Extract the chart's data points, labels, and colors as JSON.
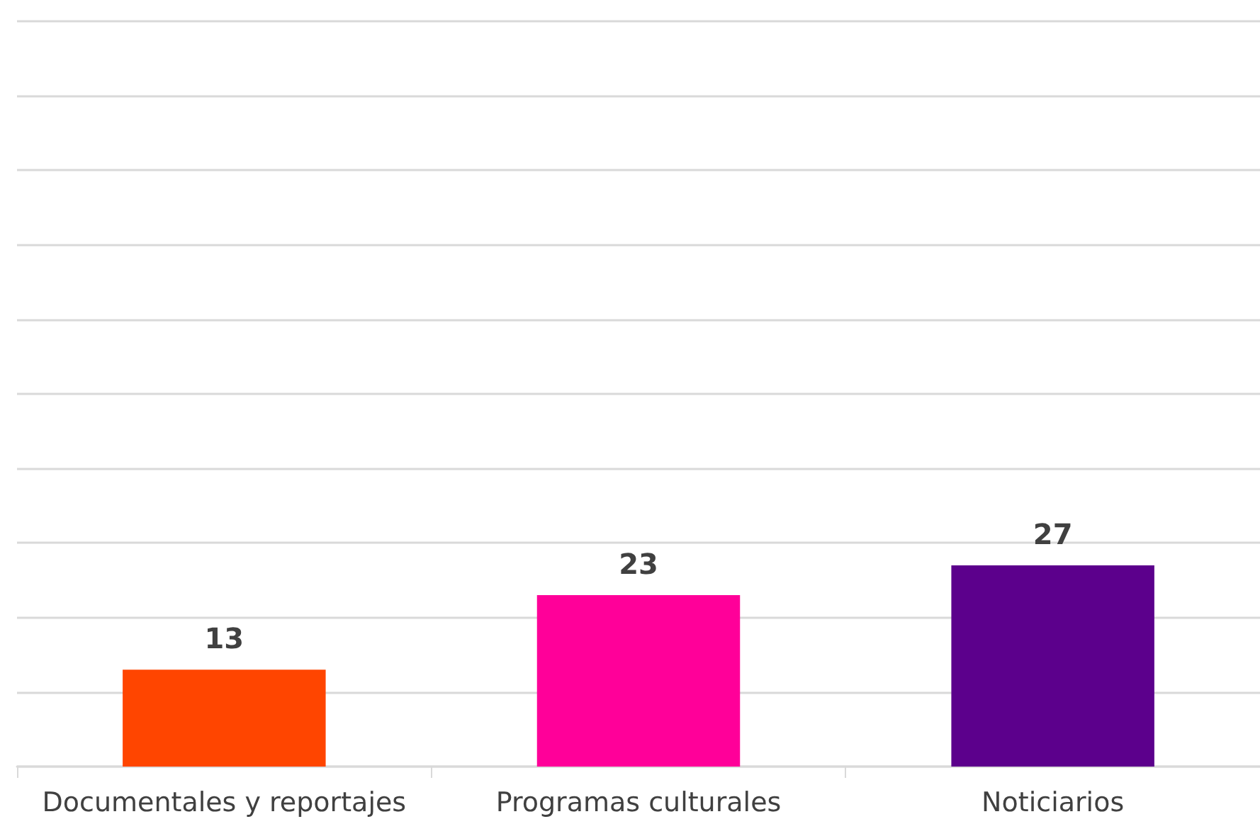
{
  "chart_data": {
    "type": "bar",
    "categories": [
      "Documentales y reportajes",
      "Programas culturales",
      "Noticiarios"
    ],
    "values": [
      13,
      23,
      27
    ],
    "colors": [
      "#ff4500",
      "#ff0099",
      "#5c008c"
    ],
    "ylim": [
      0,
      100
    ],
    "yticks": [
      {
        "value": 0,
        "label": null
      },
      {
        "value": 10,
        "label": null
      },
      {
        "value": 20,
        "label": null
      },
      {
        "value": 30,
        "label": null
      },
      {
        "value": 40,
        "label": null
      },
      {
        "value": 50,
        "label": null
      },
      {
        "value": 60,
        "label": null
      },
      {
        "value": 70,
        "label": null
      },
      {
        "value": 80,
        "label": null
      },
      {
        "value": 90,
        "label": null
      },
      {
        "value": 100,
        "label": null
      }
    ],
    "grid": "y",
    "tick_labels": "x",
    "data_labels": true
  }
}
